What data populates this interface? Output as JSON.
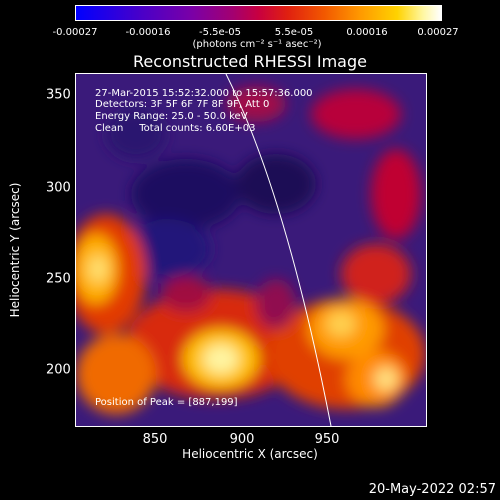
{
  "colorbar": {
    "ticks": [
      "-0.00027",
      "-0.00016",
      "-5.5e-05",
      "5.5e-05",
      "0.00016",
      "0.00027"
    ],
    "units": "(photons cm⁻² s⁻¹ asec⁻²)"
  },
  "title": "Reconstructed RHESSI Image",
  "info": {
    "time": "27-Mar-2015 15:52:32.000 to 15:57:36.000",
    "detectors": "Detectors: 3F 5F 6F 7F 8F 9F, Att 0",
    "energy": "Energy Range: 25.0 - 50.0 keV",
    "clean": "Clean     Total counts: 6.60E+03"
  },
  "peak": "Position of Peak = [887,199]",
  "axes": {
    "xlabel": "Heliocentric X (arcsec)",
    "ylabel": "Heliocentric Y (arcsec)",
    "xticks": [
      "850",
      "900",
      "950"
    ],
    "yticks": [
      "350",
      "300",
      "250",
      "200"
    ]
  },
  "date": "20-May-2022 02:57"
}
